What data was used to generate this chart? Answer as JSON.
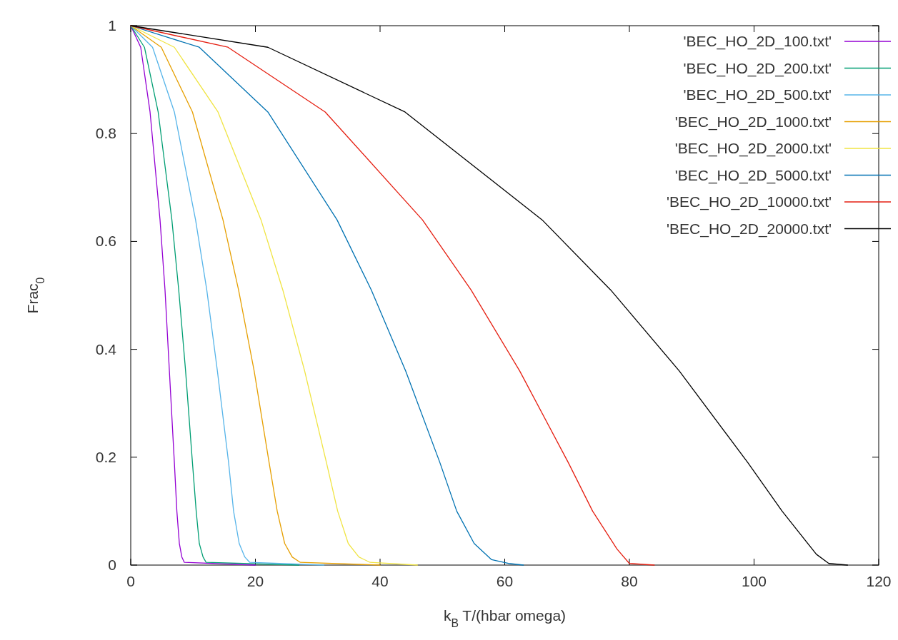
{
  "chart_data": {
    "type": "line",
    "xlabel": "k$_{B}$ T/(hbar omega)",
    "ylabel": "Frac$_{0}$",
    "xlim": [
      0,
      120
    ],
    "xticks": [
      0,
      20,
      40,
      60,
      80,
      100,
      120
    ],
    "ylim": [
      0,
      1
    ],
    "yticks": [
      0,
      0.2,
      0.4,
      0.6,
      0.8,
      1
    ],
    "legend": "top right",
    "grid": false,
    "marker": "none",
    "line_style": "solid",
    "series": [
      {
        "name": "'BEC_HO_2D_100.txt'",
        "color": "#9400d3",
        "x": [
          0,
          1.6,
          3.1,
          4.7,
          5.5,
          6.2,
          7.0,
          7.4,
          7.8,
          8.2,
          8.6,
          20
        ],
        "values": [
          1,
          0.96,
          0.84,
          0.64,
          0.51,
          0.36,
          0.19,
          0.1,
          0.04,
          0.015,
          0.005,
          0
        ]
      },
      {
        "name": "'BEC_HO_2D_200.txt'",
        "color": "#009e73",
        "x": [
          0,
          2.2,
          4.4,
          6.6,
          7.7,
          8.8,
          9.9,
          10.5,
          11,
          11.6,
          12.1,
          27
        ],
        "values": [
          1,
          0.96,
          0.84,
          0.64,
          0.51,
          0.36,
          0.19,
          0.1,
          0.04,
          0.015,
          0.005,
          0
        ]
      },
      {
        "name": "'BEC_HO_2D_500.txt'",
        "color": "#56b4e9",
        "x": [
          0,
          3.5,
          7.0,
          10.4,
          12.2,
          13.9,
          15.7,
          16.5,
          17.4,
          18.3,
          19.1,
          31
        ],
        "values": [
          1,
          0.96,
          0.84,
          0.64,
          0.51,
          0.36,
          0.19,
          0.1,
          0.04,
          0.015,
          0.005,
          0
        ]
      },
      {
        "name": "'BEC_HO_2D_1000.txt'",
        "color": "#e69f00",
        "x": [
          0,
          4.9,
          9.9,
          14.8,
          17.3,
          19.8,
          22.2,
          23.5,
          24.7,
          25.9,
          27.2,
          40
        ],
        "values": [
          1,
          0.96,
          0.84,
          0.64,
          0.51,
          0.36,
          0.19,
          0.1,
          0.04,
          0.015,
          0.005,
          0
        ]
      },
      {
        "name": "'BEC_HO_2D_2000.txt'",
        "color": "#f0e442",
        "x": [
          0,
          7.0,
          14.0,
          20.9,
          24.4,
          27.9,
          31.4,
          33.2,
          34.9,
          36.6,
          38.4,
          46
        ],
        "values": [
          1,
          0.96,
          0.84,
          0.64,
          0.51,
          0.36,
          0.19,
          0.1,
          0.04,
          0.015,
          0.005,
          0
        ]
      },
      {
        "name": "'BEC_HO_2D_5000.txt'",
        "color": "#0072b2",
        "x": [
          0,
          11,
          22,
          33.1,
          38.6,
          44.1,
          49.6,
          52.3,
          55.1,
          57.9,
          60.6,
          63
        ],
        "values": [
          1,
          0.96,
          0.84,
          0.64,
          0.51,
          0.36,
          0.19,
          0.1,
          0.04,
          0.01,
          0.003,
          0
        ]
      },
      {
        "name": "'BEC_HO_2D_10000.txt'",
        "color": "#e51e10",
        "x": [
          0,
          15.6,
          31.2,
          46.8,
          54.6,
          62.4,
          70.2,
          74.1,
          78,
          80,
          84
        ],
        "values": [
          1,
          0.96,
          0.84,
          0.64,
          0.51,
          0.36,
          0.19,
          0.1,
          0.03,
          0.003,
          0
        ]
      },
      {
        "name": "'BEC_HO_2D_20000.txt'",
        "color": "#000000",
        "x": [
          0,
          22,
          44,
          66,
          77,
          88,
          99,
          104.5,
          110,
          112,
          115
        ],
        "values": [
          1,
          0.96,
          0.84,
          0.64,
          0.51,
          0.36,
          0.19,
          0.1,
          0.02,
          0.003,
          0
        ]
      }
    ]
  }
}
